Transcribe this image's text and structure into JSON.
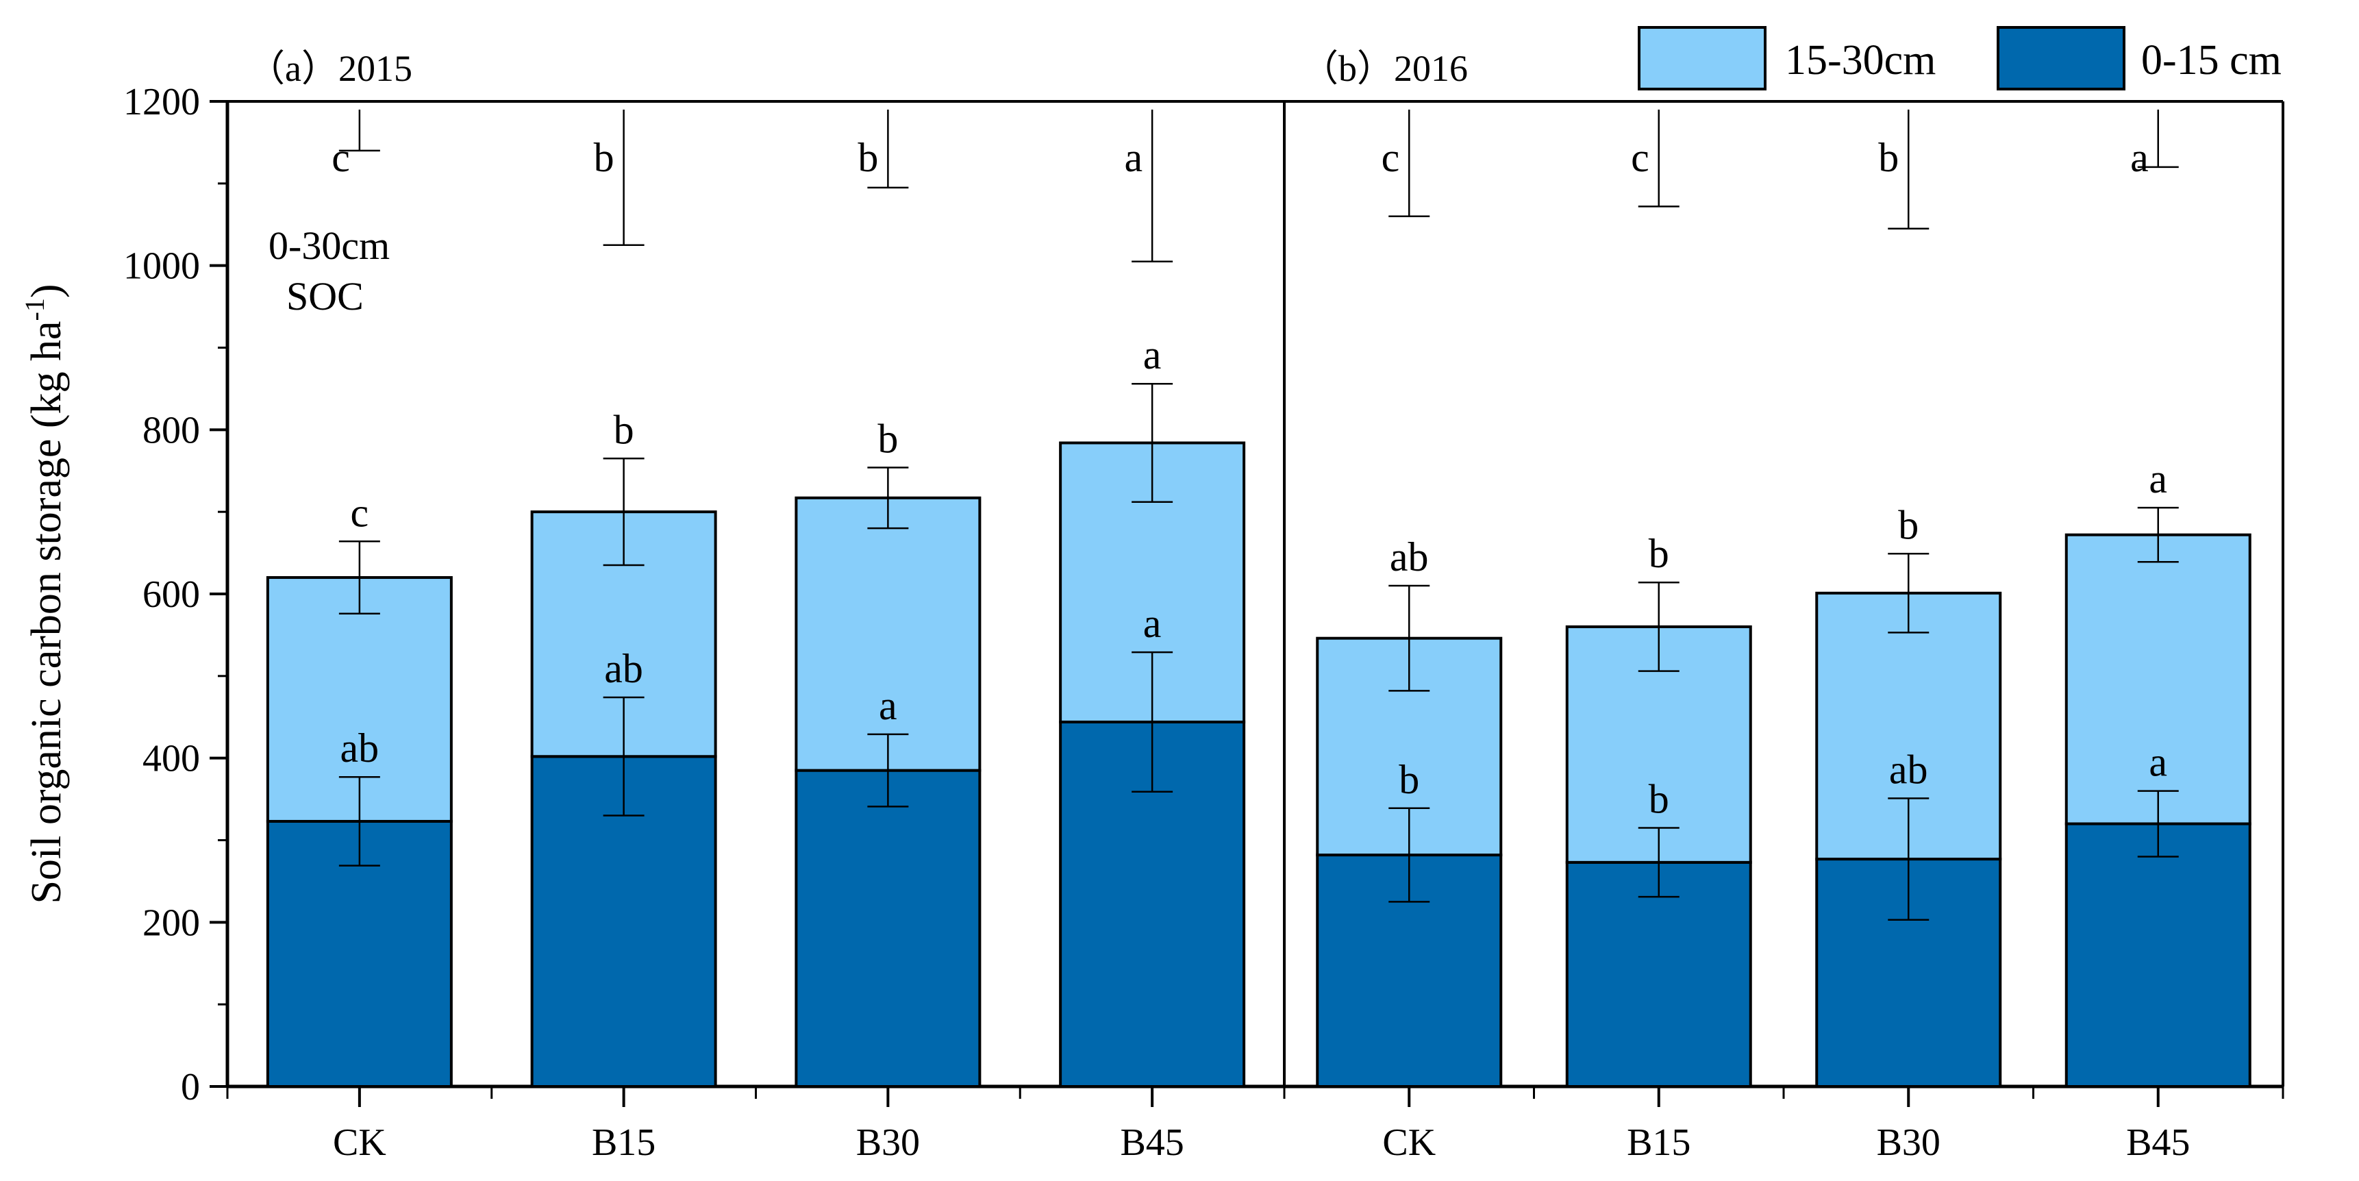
{
  "chart_data": {
    "type": "bar",
    "stacked": true,
    "ylabel": "Soil organic carbon storage (kg ha",
    "ylabel_sup": "-1",
    "ylabel_close": ")",
    "ylim": [
      0,
      1200
    ],
    "yticks": [
      0,
      200,
      400,
      600,
      800,
      1000,
      1200
    ],
    "grid": false,
    "legend": {
      "position": "top-right",
      "entries": [
        {
          "name": "15-30cm",
          "color": "#87CEFA"
        },
        {
          "name": "0-15 cm",
          "color": "#0068AD"
        }
      ]
    },
    "annotation": {
      "line1": "0-30cm",
      "line2": "SOC"
    },
    "panels": [
      {
        "title": "（a）2015",
        "categories": [
          "CK",
          "B15",
          "B30",
          "B45"
        ],
        "series": [
          {
            "name": "0-15 cm",
            "values": [
              323,
              402,
              385,
              444
            ],
            "errors": [
              54,
              72,
              44,
              85
            ],
            "letters": [
              "ab",
              "ab",
              "a",
              "a"
            ]
          },
          {
            "name": "15-30cm",
            "values": [
              297,
              298,
              332,
              340
            ],
            "errors": [
              44,
              65,
              37,
              72
            ],
            "letters": [
              "c",
              "b",
              "b",
              "a"
            ]
          }
        ],
        "total": {
          "values": [
            620,
            700,
            717,
            784
          ],
          "errors": [
            50,
            165,
            95,
            185
          ],
          "letters": [
            "c",
            "b",
            "b",
            "a"
          ]
        }
      },
      {
        "title": "（b）2016",
        "categories": [
          "CK",
          "B15",
          "B30",
          "B45"
        ],
        "series": [
          {
            "name": "0-15 cm",
            "values": [
              282,
              273,
              277,
              320
            ],
            "errors": [
              57,
              42,
              74,
              40
            ],
            "letters": [
              "b",
              "b",
              "ab",
              "a"
            ]
          },
          {
            "name": "15-30cm",
            "values": [
              264,
              287,
              324,
              352
            ],
            "errors": [
              64,
              54,
              48,
              33
            ],
            "letters": [
              "ab",
              "b",
              "b",
              "a"
            ]
          }
        ],
        "total": {
          "values": [
            546,
            560,
            601,
            672
          ],
          "errors": [
            130,
            118,
            145,
            70
          ],
          "letters": [
            "c",
            "c",
            "b",
            "a"
          ]
        }
      }
    ]
  }
}
